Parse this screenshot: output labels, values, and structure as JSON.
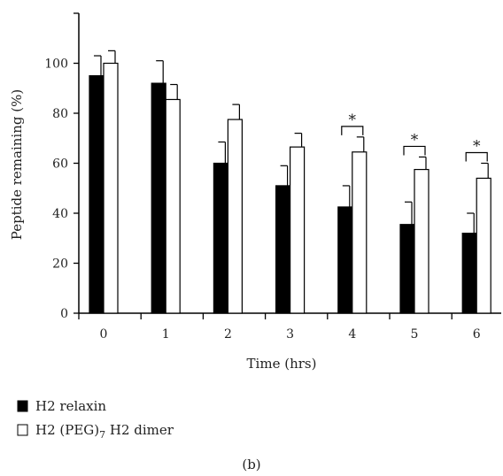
{
  "chart_data": {
    "type": "bar",
    "xlabel": "Time (hrs)",
    "ylabel": "Peptide remaining (%)",
    "ylim": [
      0,
      120
    ],
    "yticks": [
      0,
      20,
      40,
      60,
      80,
      100
    ],
    "categories": [
      "0",
      "1",
      "2",
      "3",
      "4",
      "5",
      "6"
    ],
    "series": [
      {
        "name": "H2 relaxin",
        "color": "#000000",
        "values": [
          95,
          92,
          60,
          51,
          42.5,
          35.5,
          32
        ],
        "errors": [
          8,
          9,
          8.5,
          8,
          8.5,
          9,
          8
        ]
      },
      {
        "name": "H2 (PEG)",
        "name_sub": "7",
        "name_suffix": " H2 dimer",
        "color": "#ffffff",
        "values": [
          100,
          85.5,
          77.5,
          66.5,
          64.5,
          57.5,
          54
        ],
        "errors": [
          5,
          6,
          6,
          5.5,
          6,
          5,
          6
        ]
      }
    ],
    "significance": {
      "categories": [
        "4",
        "5",
        "6"
      ],
      "symbol": "*"
    },
    "legend_position": "bottom-left",
    "panel_label": "(b)"
  }
}
